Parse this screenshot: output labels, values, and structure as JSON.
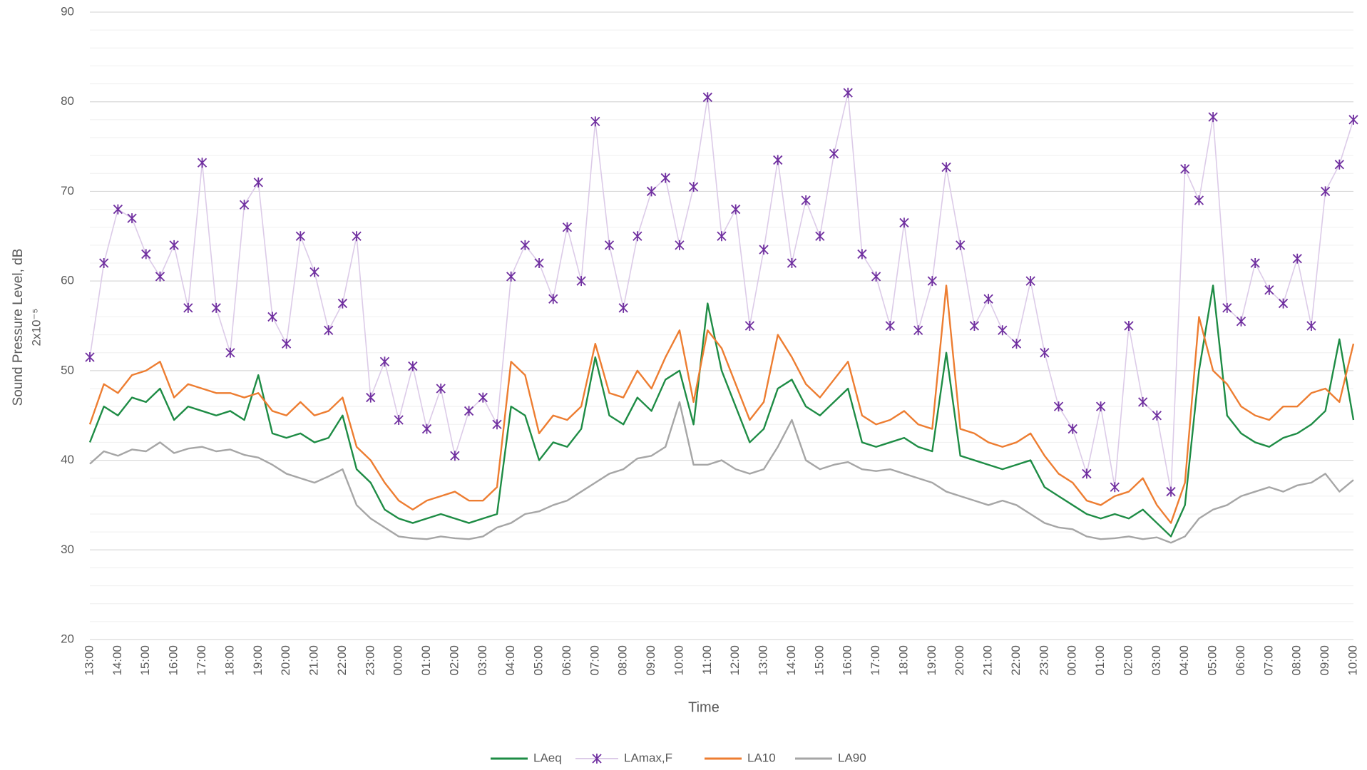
{
  "chart_data": {
    "type": "line",
    "y_label": "Sound Pressure Level, dB",
    "y_label_sub": "2x10⁻⁵",
    "x_label": "Time",
    "categories": [
      "13:00",
      null,
      "14:00",
      null,
      "15:00",
      null,
      "16:00",
      null,
      "17:00",
      null,
      "18:00",
      null,
      "19:00",
      null,
      "20:00",
      null,
      "21:00",
      null,
      "22:00",
      null,
      "23:00",
      null,
      "00:00",
      null,
      "01:00",
      null,
      "02:00",
      null,
      "03:00",
      null,
      "04:00",
      null,
      "05:00",
      null,
      "06:00",
      null,
      "07:00",
      null,
      "08:00",
      null,
      "09:00",
      null,
      "10:00",
      null,
      "11:00",
      null,
      "12:00",
      null,
      "13:00",
      null,
      "14:00",
      null,
      "15:00",
      null,
      "16:00",
      null,
      "17:00",
      null,
      "18:00",
      null,
      "19:00",
      null,
      "20:00",
      null,
      "21:00",
      null,
      "22:00",
      null,
      "23:00",
      null,
      "00:00",
      null,
      "01:00",
      null,
      "02:00",
      null,
      "03:00",
      null,
      "04:00",
      null,
      "05:00",
      null,
      "06:00",
      null,
      "07:00",
      null,
      "08:00",
      null,
      "09:00",
      null,
      "10:00"
    ],
    "series": [
      {
        "name": "LAeq",
        "color": "#1e8c45",
        "values": [
          42.0,
          46.0,
          45.0,
          47.0,
          46.5,
          48.0,
          44.5,
          46.0,
          45.5,
          45.0,
          45.5,
          44.5,
          49.5,
          43.0,
          42.5,
          43.0,
          42.0,
          42.5,
          45.0,
          39.0,
          37.5,
          34.5,
          33.5,
          33.0,
          33.5,
          34.0,
          33.5,
          33.0,
          33.5,
          34.0,
          46.0,
          45.0,
          40.0,
          42.0,
          41.5,
          43.5,
          51.5,
          45.0,
          44.0,
          47.0,
          45.5,
          49.0,
          50.0,
          44.0,
          57.5,
          50.0,
          46.0,
          42.0,
          43.5,
          48.0,
          49.0,
          46.0,
          45.0,
          46.5,
          48.0,
          42.0,
          41.5,
          42.0,
          42.5,
          41.5,
          41.0,
          52.0,
          40.5,
          40.0,
          39.5,
          39.0,
          39.5,
          40.0,
          37.0,
          36.0,
          35.0,
          34.0,
          33.5,
          34.0,
          33.5,
          34.5,
          33.0,
          31.5,
          35.0,
          50.0,
          59.5,
          45.0,
          43.0,
          42.0,
          41.5,
          42.5,
          43.0,
          44.0,
          45.5,
          53.5,
          44.5
        ]
      },
      {
        "name": "LAmax,F",
        "color": "#dccbe8",
        "marker_color": "#7030a0",
        "marker": "x",
        "values": [
          51.5,
          62.0,
          68.0,
          67.0,
          63.0,
          60.5,
          64.0,
          57.0,
          73.2,
          57.0,
          52.0,
          68.5,
          71.0,
          56.0,
          53.0,
          65.0,
          61.0,
          54.5,
          57.5,
          65.0,
          47.0,
          51.0,
          44.5,
          50.5,
          43.5,
          48.0,
          40.5,
          45.5,
          47.0,
          44.0,
          60.5,
          64.0,
          62.0,
          58.0,
          66.0,
          60.0,
          77.8,
          64.0,
          57.0,
          65.0,
          70.0,
          71.5,
          64.0,
          70.5,
          80.5,
          65.0,
          68.0,
          55.0,
          63.5,
          73.5,
          62.0,
          69.0,
          65.0,
          74.2,
          81.0,
          63.0,
          60.5,
          55.0,
          66.5,
          54.5,
          60.0,
          72.7,
          64.0,
          55.0,
          58.0,
          54.5,
          53.0,
          60.0,
          52.0,
          46.0,
          43.5,
          38.5,
          46.0,
          37.0,
          55.0,
          46.5,
          45.0,
          36.5,
          72.5,
          69.0,
          78.3,
          57.0,
          55.5,
          62.0,
          59.0,
          57.5,
          62.5,
          55.0,
          70.0,
          73.0,
          78.0
        ]
      },
      {
        "name": "LA10",
        "color": "#ed7d31",
        "values": [
          44.0,
          48.5,
          47.5,
          49.5,
          50.0,
          51.0,
          47.0,
          48.5,
          48.0,
          47.5,
          47.5,
          47.0,
          47.5,
          45.5,
          45.0,
          46.5,
          45.0,
          45.5,
          47.0,
          41.5,
          40.0,
          37.5,
          35.5,
          34.5,
          35.5,
          36.0,
          36.5,
          35.5,
          35.5,
          37.0,
          51.0,
          49.5,
          43.0,
          45.0,
          44.5,
          46.0,
          53.0,
          47.5,
          47.0,
          50.0,
          48.0,
          51.5,
          54.5,
          46.5,
          54.5,
          52.5,
          48.5,
          44.5,
          46.5,
          54.0,
          51.5,
          48.5,
          47.0,
          49.0,
          51.0,
          45.0,
          44.0,
          44.5,
          45.5,
          44.0,
          43.5,
          59.5,
          43.5,
          43.0,
          42.0,
          41.5,
          42.0,
          43.0,
          40.5,
          38.5,
          37.5,
          35.5,
          35.0,
          36.0,
          36.5,
          38.0,
          35.0,
          33.0,
          37.5,
          56.0,
          50.0,
          48.5,
          46.0,
          45.0,
          44.5,
          46.0,
          46.0,
          47.5,
          48.0,
          46.5,
          53.0
        ]
      },
      {
        "name": "LA90",
        "color": "#a6a6a6",
        "values": [
          39.6,
          41.0,
          40.5,
          41.2,
          41.0,
          42.0,
          40.8,
          41.3,
          41.5,
          41.0,
          41.2,
          40.6,
          40.3,
          39.5,
          38.5,
          38.0,
          37.5,
          38.2,
          39.0,
          35.0,
          33.5,
          32.5,
          31.5,
          31.3,
          31.2,
          31.5,
          31.3,
          31.2,
          31.5,
          32.5,
          33.0,
          34.0,
          34.3,
          35.0,
          35.5,
          36.5,
          37.5,
          38.5,
          39.0,
          40.2,
          40.5,
          41.5,
          46.5,
          39.5,
          39.5,
          40.0,
          39.0,
          38.5,
          39.0,
          41.5,
          44.5,
          40.0,
          39.0,
          39.5,
          39.8,
          39.0,
          38.8,
          39.0,
          38.5,
          38.0,
          37.5,
          36.5,
          36.0,
          35.5,
          35.0,
          35.5,
          35.0,
          34.0,
          33.0,
          32.5,
          32.3,
          31.5,
          31.2,
          31.3,
          31.5,
          31.2,
          31.4,
          30.8,
          31.5,
          33.5,
          34.5,
          35.0,
          36.0,
          36.5,
          37.0,
          36.5,
          37.2,
          37.5,
          38.5,
          36.5,
          37.8
        ]
      }
    ],
    "ylim": [
      20,
      90
    ],
    "yticks": [
      20,
      30,
      40,
      50,
      60,
      70,
      80,
      90
    ],
    "minor_yticks": [
      22,
      24,
      26,
      28,
      32,
      34,
      36,
      38,
      42,
      44,
      46,
      48,
      52,
      54,
      56,
      58,
      62,
      64,
      66,
      68,
      72,
      74,
      76,
      78,
      82,
      84,
      86,
      88
    ],
    "grid": true,
    "legend": "bottom"
  }
}
